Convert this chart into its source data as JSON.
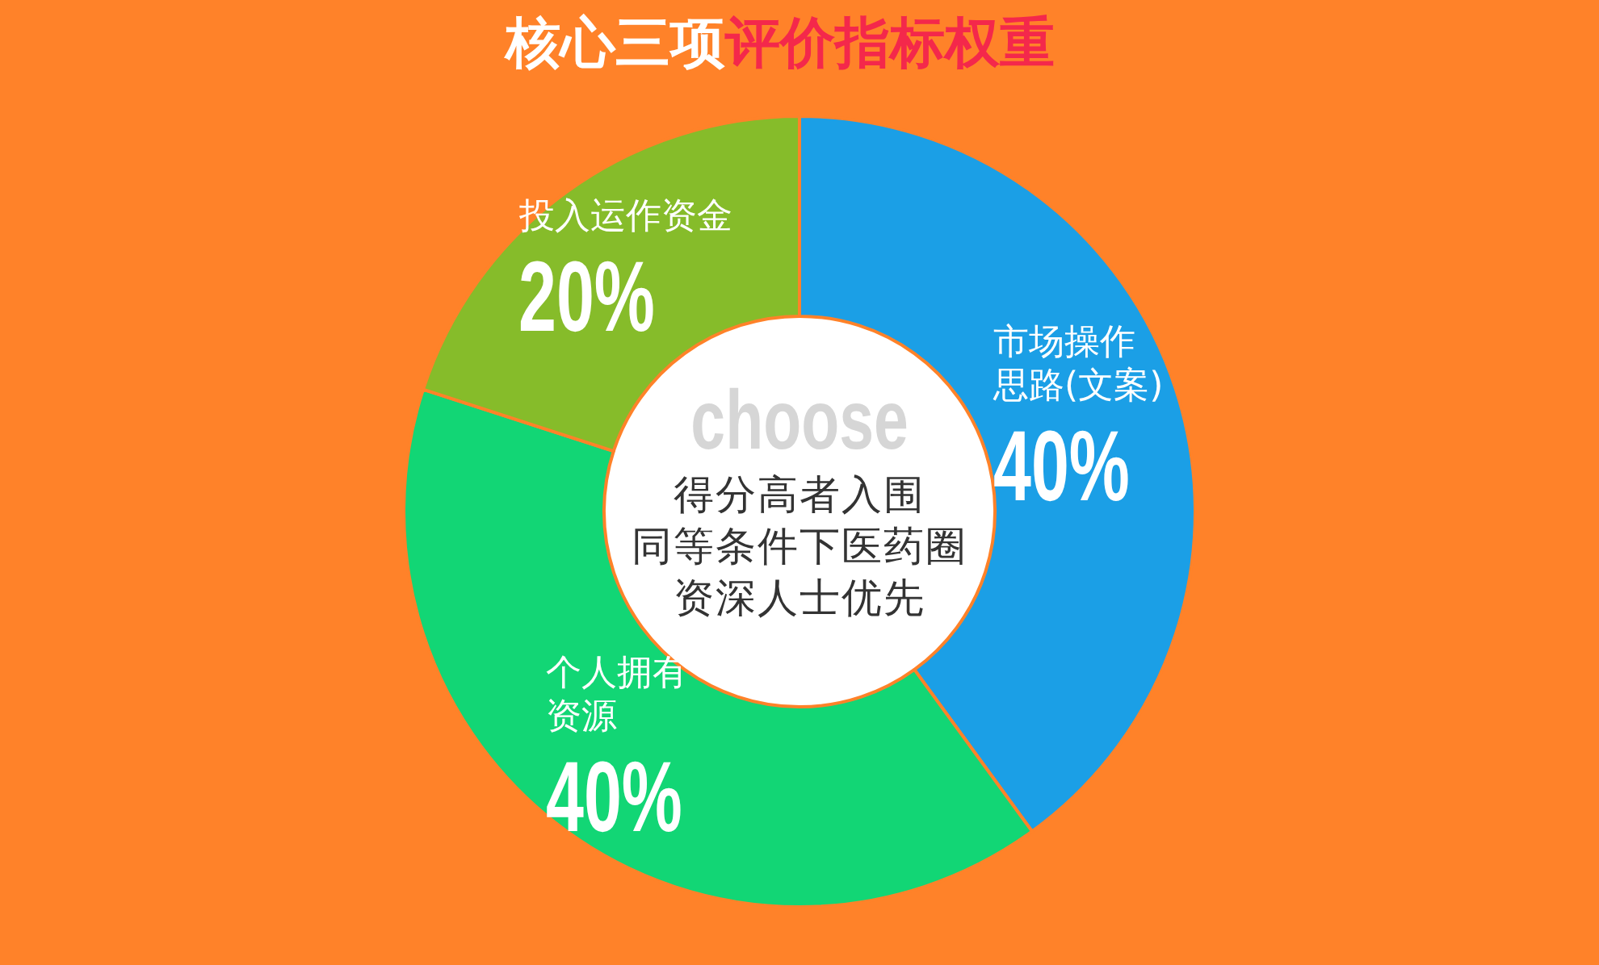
{
  "chart_data": {
    "type": "donut",
    "title": "核心三项评价指标权重",
    "categories": [
      "市场操作思路(文案)",
      "个人拥有资源",
      "投入运作资金"
    ],
    "values": [
      40,
      40,
      20
    ],
    "colors": [
      "#1b9fe6",
      "#12d675",
      "#86bc2a"
    ],
    "value_labels": [
      "40%",
      "40%",
      "20%"
    ],
    "annotations": [
      "choose",
      "得分高者入围",
      "同等条件下医药圈",
      "资深人士优先"
    ]
  }
}
